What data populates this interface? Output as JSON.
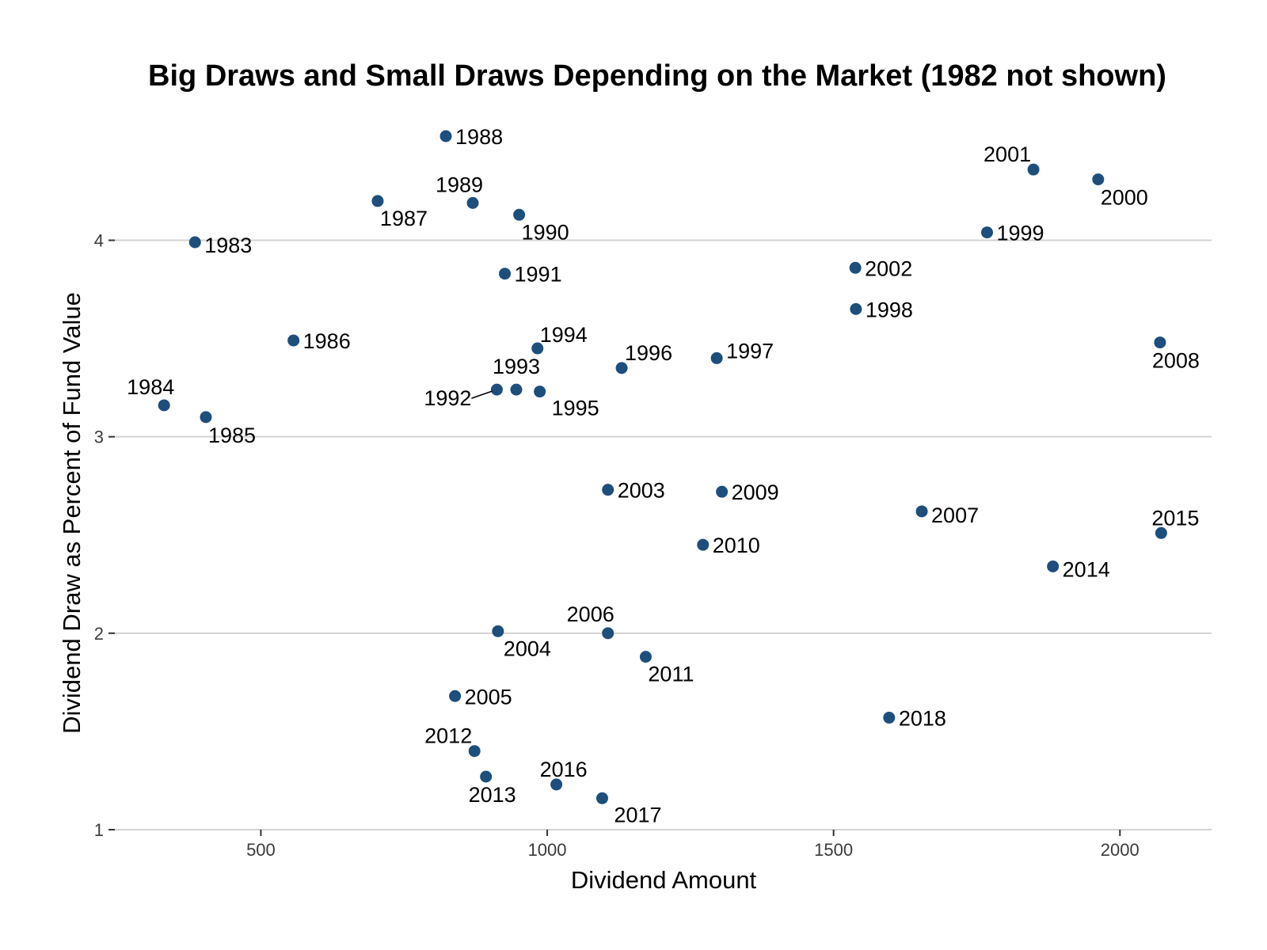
{
  "chart_data": {
    "type": "scatter",
    "title": "Big Draws and Small Draws Depending on the Market (1982 not shown)",
    "xlabel": "Dividend Amount",
    "ylabel": "Dividend Draw as Percent of Fund Value",
    "xlim": [
      245,
      2160
    ],
    "ylim": [
      1,
      4.53
    ],
    "xticks": [
      500,
      1000,
      1500,
      2000
    ],
    "yticks": [
      1,
      2,
      3,
      4
    ],
    "grid": "horizontal",
    "point_color": "#1d4e7c",
    "points": [
      {
        "label": "1983",
        "x": 385,
        "y": 3.99
      },
      {
        "label": "1984",
        "x": 331,
        "y": 3.16
      },
      {
        "label": "1985",
        "x": 404,
        "y": 3.1
      },
      {
        "label": "1986",
        "x": 557,
        "y": 3.49
      },
      {
        "label": "1987",
        "x": 704,
        "y": 4.2
      },
      {
        "label": "1988",
        "x": 823,
        "y": 4.53
      },
      {
        "label": "1989",
        "x": 870,
        "y": 4.19
      },
      {
        "label": "1990",
        "x": 951,
        "y": 4.13
      },
      {
        "label": "1991",
        "x": 926,
        "y": 3.83
      },
      {
        "label": "1992",
        "x": 912,
        "y": 3.24
      },
      {
        "label": "1993",
        "x": 946,
        "y": 3.24
      },
      {
        "label": "1994",
        "x": 983,
        "y": 3.45
      },
      {
        "label": "1995",
        "x": 987,
        "y": 3.23
      },
      {
        "label": "1996",
        "x": 1130,
        "y": 3.35
      },
      {
        "label": "1997",
        "x": 1296,
        "y": 3.4
      },
      {
        "label": "1998",
        "x": 1539,
        "y": 3.65
      },
      {
        "label": "1999",
        "x": 1768,
        "y": 4.04
      },
      {
        "label": "2000",
        "x": 1962,
        "y": 4.31
      },
      {
        "label": "2001",
        "x": 1849,
        "y": 4.36
      },
      {
        "label": "2002",
        "x": 1538,
        "y": 3.86
      },
      {
        "label": "2003",
        "x": 1106,
        "y": 2.73
      },
      {
        "label": "2004",
        "x": 914,
        "y": 2.01
      },
      {
        "label": "2005",
        "x": 839,
        "y": 1.68
      },
      {
        "label": "2006",
        "x": 1106,
        "y": 2.0
      },
      {
        "label": "2007",
        "x": 1654,
        "y": 2.62
      },
      {
        "label": "2008",
        "x": 2070,
        "y": 3.48
      },
      {
        "label": "2009",
        "x": 1305,
        "y": 2.72
      },
      {
        "label": "2010",
        "x": 1272,
        "y": 2.45
      },
      {
        "label": "2011",
        "x": 1172,
        "y": 1.88
      },
      {
        "label": "2012",
        "x": 873,
        "y": 1.4
      },
      {
        "label": "2013",
        "x": 893,
        "y": 1.27
      },
      {
        "label": "2014",
        "x": 1883,
        "y": 2.34
      },
      {
        "label": "2015",
        "x": 2072,
        "y": 2.51
      },
      {
        "label": "2016",
        "x": 1016,
        "y": 1.23
      },
      {
        "label": "2017",
        "x": 1096,
        "y": 1.16
      },
      {
        "label": "2018",
        "x": 1597,
        "y": 1.57
      }
    ]
  }
}
